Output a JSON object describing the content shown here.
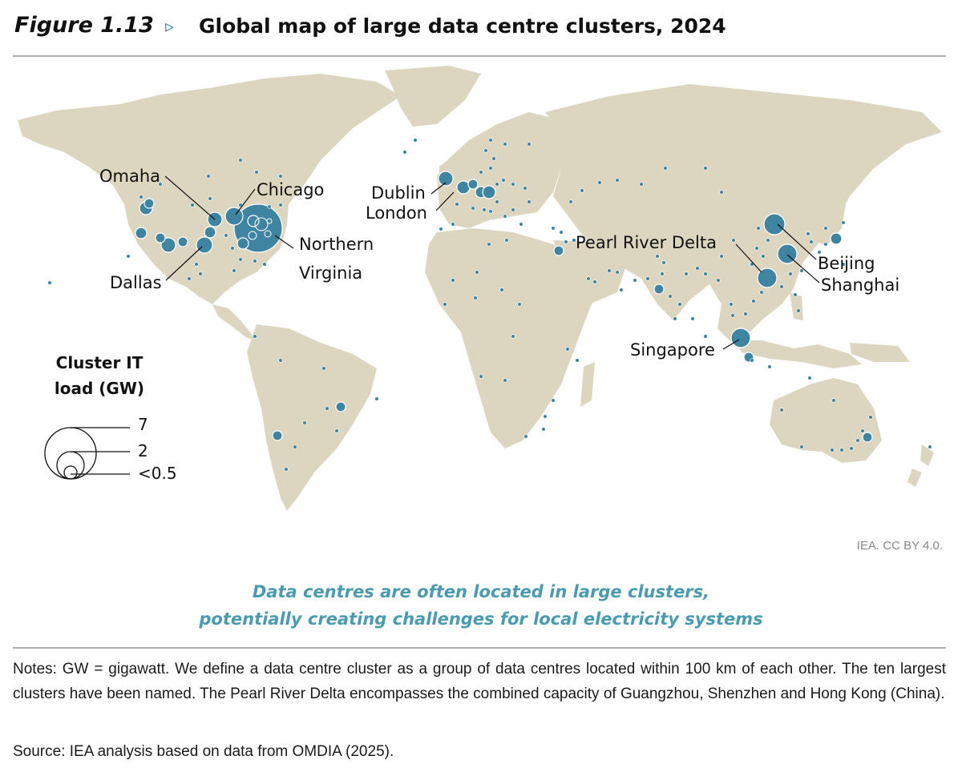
{
  "header": {
    "figure_number": "Figure 1.13",
    "arrow": "▹",
    "title": "Global map of large data centre clusters, 2024"
  },
  "map": {
    "land_color": "#dcd6c0",
    "bubble_color": "#3f84a0",
    "labels": {
      "omaha": "Omaha",
      "chicago": "Chicago",
      "dallas": "Dallas",
      "northern_virginia_line1": "Northern",
      "northern_virginia_line2": "Virginia",
      "dublin": "Dublin",
      "london": "London",
      "pearl_river_delta": "Pearl River Delta",
      "beijing": "Beijing",
      "shanghai": "Shanghai",
      "singapore": "Singapore"
    },
    "legend": {
      "title_line1": "Cluster IT",
      "title_line2": "load (GW)",
      "sizes": [
        {
          "value_gw": 7,
          "label": "7"
        },
        {
          "value_gw": 2,
          "label": "2"
        },
        {
          "value_gw": 0.5,
          "label": "<0.5"
        }
      ]
    }
  },
  "credit": "IEA. CC BY 4.0.",
  "caption": {
    "line1": "Data centres are often located in large clusters,",
    "line2": "potentially creating challenges for local electricity systems"
  },
  "notes": "Notes: GW = gigawatt. We define a data centre cluster as a group of data centres located within 100 km of each other. The ten largest clusters have been named. The Pearl River Delta encompasses the combined capacity of Guangzhou, Shenzhen and Hong Kong (China).",
  "source": "Source: IEA analysis based on data from OMDIA (2025)."
}
